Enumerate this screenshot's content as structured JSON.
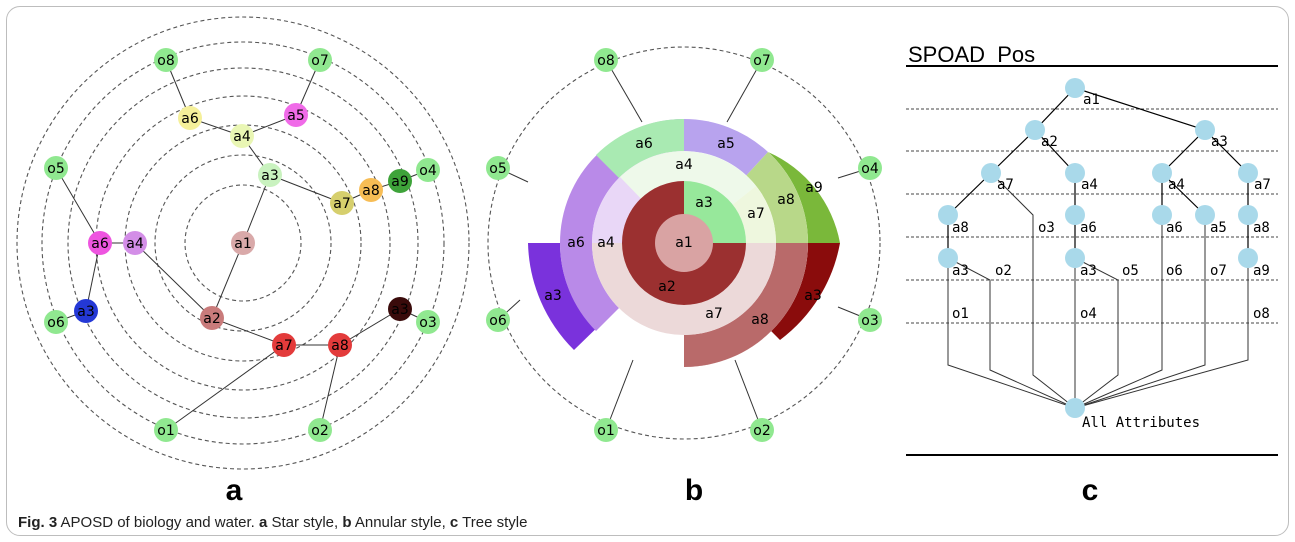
{
  "caption": {
    "fig": "Fig. 3",
    "text": "APOSD of biology and water.",
    "a_letter": "a",
    "a_text": "Star style,",
    "b_letter": "b",
    "b_text": "Annular style,",
    "c_letter": "c",
    "c_text": "Tree style"
  },
  "panels": {
    "a": "a",
    "b": "b",
    "c": "c"
  },
  "star": {
    "nodes": [
      {
        "id": "a1",
        "color": "#d9a9a9"
      },
      {
        "id": "a2",
        "color": "#c97b7b"
      },
      {
        "id": "a3",
        "color": "#c9f2bf"
      },
      {
        "id": "a4",
        "color": "#e9f6b4"
      },
      {
        "id": "a5",
        "color": "#f06be8"
      },
      {
        "id": "a6",
        "color": "#f5f09a"
      },
      {
        "id": "a7",
        "color": "#d6cf6d"
      },
      {
        "id": "a8",
        "color": "#f7bd55"
      },
      {
        "id": "a9",
        "color": "#3ea33a"
      },
      {
        "id": "a7",
        "color": "#e33b3b"
      },
      {
        "id": "a8",
        "color": "#e33b3b"
      },
      {
        "id": "a3",
        "color": "#3a0b0b"
      },
      {
        "id": "a6",
        "color": "#ee55e0"
      },
      {
        "id": "a4",
        "color": "#d38ee7"
      },
      {
        "id": "a3",
        "color": "#2438d6"
      },
      {
        "id": "o1",
        "color": "#90e890"
      },
      {
        "id": "o2",
        "color": "#90e890"
      },
      {
        "id": "o3",
        "color": "#90e890"
      },
      {
        "id": "o4",
        "color": "#90e890"
      },
      {
        "id": "o5",
        "color": "#90e890"
      },
      {
        "id": "o6",
        "color": "#90e890"
      },
      {
        "id": "o7",
        "color": "#90e890"
      },
      {
        "id": "o8",
        "color": "#90e890"
      }
    ]
  },
  "annular": {
    "labels": [
      "a1",
      "a2",
      "a3",
      "a4",
      "a5",
      "a6",
      "a7",
      "a8",
      "a9",
      "a4",
      "a6",
      "a3",
      "a7",
      "a8",
      "a3",
      "o1",
      "o2",
      "o3",
      "o4",
      "o5",
      "o6",
      "o7",
      "o8"
    ]
  },
  "tree": {
    "title": "SPOAD_Pos",
    "root_label": "All Attributes",
    "labels": [
      "a1",
      "a2",
      "a3",
      "a7",
      "a4",
      "a4",
      "a7",
      "a8",
      "a6",
      "a6",
      "a5",
      "a8",
      "a3",
      "a3",
      "a9",
      "o3",
      "o2",
      "o5",
      "o6",
      "o7",
      "o1",
      "o4",
      "o8"
    ]
  }
}
